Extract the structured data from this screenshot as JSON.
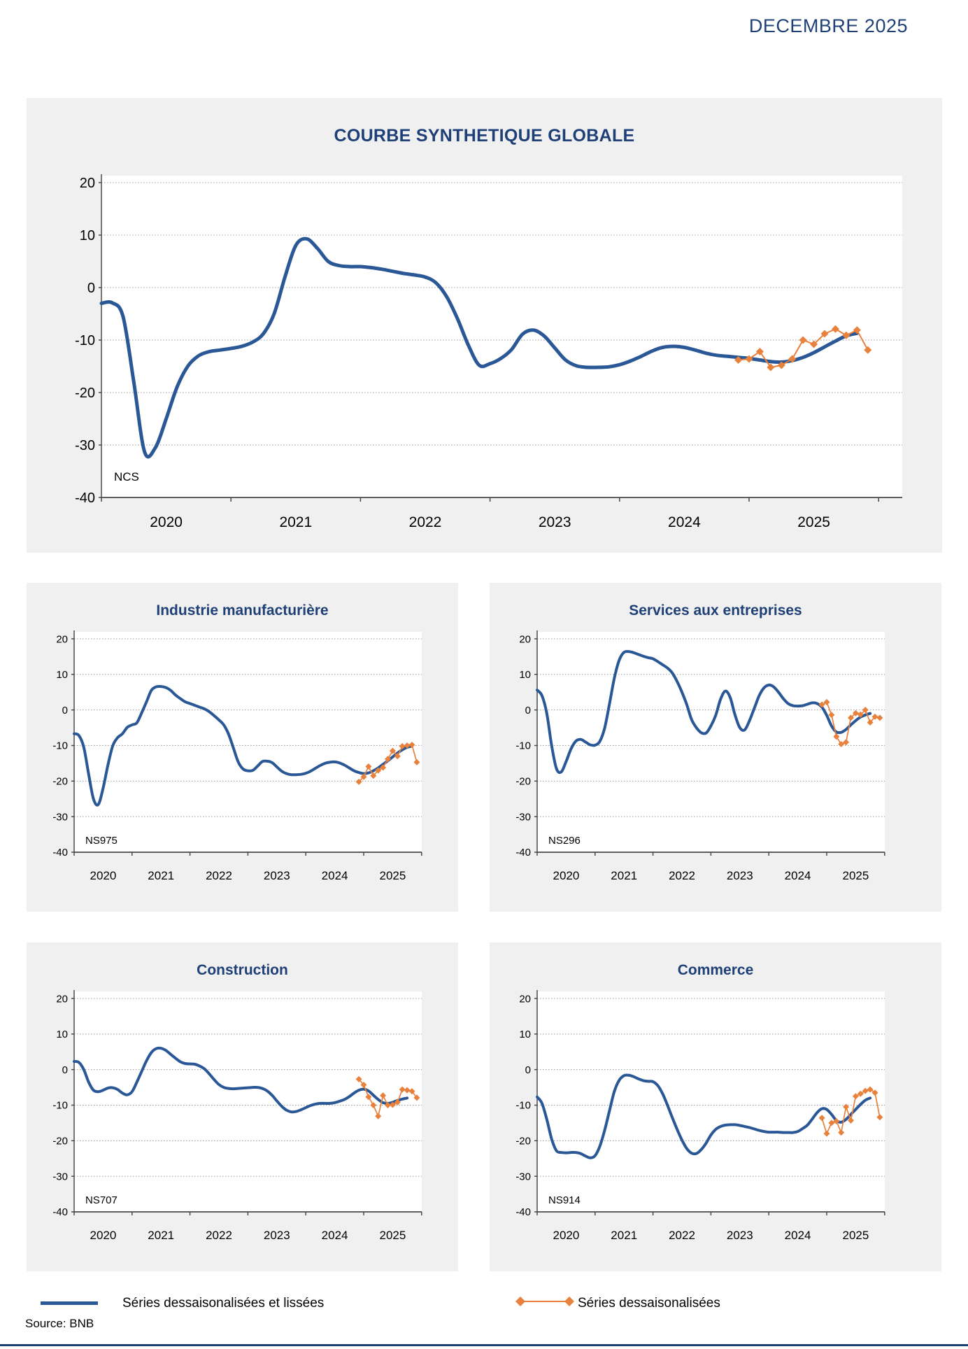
{
  "page": {
    "header": "DECEMBRE 2025",
    "source": "Source: BNB"
  },
  "legend": {
    "smoothed": "Séries dessaisonalisées et lissées",
    "raw": "Séries dessaisonalisées"
  },
  "colors": {
    "navy_text": "#1E4077",
    "blue_line": "#2A5795",
    "orange_line": "#E8813C",
    "panel_bg": "#F0F0F1",
    "plot_bg": "#FFFFFF",
    "grid": "#9B9B9B",
    "axis": "#4A4A4A",
    "tick_text": "#000000"
  },
  "chart_data": [
    {
      "id": "global",
      "type": "line",
      "title": "COURBE SYNTHETIQUE GLOBALE",
      "code": "NCS",
      "ylim": [
        -40,
        20
      ],
      "y_ticks": [
        20,
        10,
        0,
        -10,
        -20,
        -30,
        -40
      ],
      "x_years": [
        "2020",
        "2021",
        "2022",
        "2023",
        "2024",
        "2025"
      ],
      "x_domain": [
        "2020-01",
        "2026-01"
      ],
      "grid": true,
      "legend_position": "bottom",
      "series": [
        {
          "name": "Séries dessaisonalisées et lissées",
          "style": "smoothed",
          "start": "2020-01",
          "values": [
            -3.0,
            -2.9,
            -5.5,
            -18.0,
            -31.3,
            -30.5,
            -25.0,
            -19.0,
            -15.0,
            -13.0,
            -12.2,
            -11.9,
            -11.6,
            -11.2,
            -10.4,
            -8.8,
            -5.0,
            2.0,
            8.0,
            9.3,
            7.5,
            5.0,
            4.2,
            4.0,
            4.0,
            3.8,
            3.5,
            3.1,
            2.7,
            2.4,
            2.0,
            0.9,
            -1.8,
            -6.0,
            -11.0,
            -14.8,
            -14.5,
            -13.5,
            -11.8,
            -8.9,
            -8.1,
            -9.2,
            -11.5,
            -13.8,
            -14.9,
            -15.2,
            -15.2,
            -15.1,
            -14.7,
            -14.0,
            -13.1,
            -12.1,
            -11.4,
            -11.2,
            -11.4,
            -11.9,
            -12.5,
            -12.9,
            -13.1,
            -13.3,
            -13.5,
            -13.8,
            -14.1,
            -14.2,
            -13.9,
            -13.3,
            -12.4,
            -11.3,
            -10.2,
            -9.2,
            -8.7
          ]
        },
        {
          "name": "Séries dessaisonalisées",
          "style": "raw",
          "start": "2024-12",
          "values": [
            -13.8,
            -13.6,
            -12.2,
            -15.2,
            -14.8,
            -13.6,
            -10.0,
            -10.8,
            -8.8,
            -7.9,
            -9.1,
            -8.1,
            -11.9
          ]
        }
      ]
    },
    {
      "id": "industrie",
      "type": "line",
      "title": "Industrie manufacturière",
      "code": "NS975",
      "ylim": [
        -40,
        20
      ],
      "y_ticks": [
        20,
        10,
        0,
        -10,
        -20,
        -30,
        -40
      ],
      "x_years": [
        "2020",
        "2021",
        "2022",
        "2023",
        "2024",
        "2025"
      ],
      "x_domain": [
        "2020-01",
        "2026-01"
      ],
      "grid": true,
      "series": [
        {
          "name": "Séries dessaisonalisées et lissées",
          "style": "smoothed",
          "start": "2020-01",
          "values": [
            -6.7,
            -7.2,
            -10.5,
            -18.0,
            -25.0,
            -26.6,
            -22.0,
            -15.5,
            -10.1,
            -7.8,
            -6.7,
            -4.9,
            -4.2,
            -3.6,
            -0.8,
            2.3,
            5.5,
            6.5,
            6.6,
            6.3,
            5.5,
            4.2,
            3.2,
            2.3,
            1.8,
            1.3,
            0.8,
            0.3,
            -0.5,
            -1.6,
            -2.8,
            -4.2,
            -6.8,
            -10.7,
            -14.6,
            -16.6,
            -17.1,
            -17.0,
            -15.8,
            -14.5,
            -14.4,
            -14.8,
            -16.0,
            -17.2,
            -17.9,
            -18.2,
            -18.2,
            -18.1,
            -17.8,
            -17.2,
            -16.4,
            -15.6,
            -15.0,
            -14.7,
            -14.6,
            -14.9,
            -15.5,
            -16.3,
            -17.1,
            -17.6,
            -17.9,
            -17.7,
            -17.1,
            -16.3,
            -15.3,
            -14.3,
            -13.2,
            -12.1,
            -11.2,
            -10.5,
            -10.2
          ]
        },
        {
          "name": "Séries dessaisonalisées",
          "style": "raw",
          "start": "2024-12",
          "values": [
            -20.2,
            -18.8,
            -15.9,
            -18.5,
            -17.0,
            -16.2,
            -13.8,
            -11.5,
            -13.0,
            -10.2,
            -10.0,
            -9.8,
            -14.7
          ]
        }
      ]
    },
    {
      "id": "services",
      "type": "line",
      "title": "Services aux entreprises",
      "code": "NS296",
      "ylim": [
        -40,
        20
      ],
      "y_ticks": [
        20,
        10,
        0,
        -10,
        -20,
        -30,
        -40
      ],
      "x_years": [
        "2020",
        "2021",
        "2022",
        "2023",
        "2024",
        "2025"
      ],
      "x_domain": [
        "2020-01",
        "2026-01"
      ],
      "grid": true,
      "series": [
        {
          "name": "Séries dessaisonalisées et lissées",
          "style": "smoothed",
          "start": "2020-01",
          "values": [
            5.6,
            4.0,
            -1.0,
            -10.0,
            -16.5,
            -17.4,
            -14.5,
            -11.0,
            -8.8,
            -8.3,
            -9.0,
            -9.8,
            -9.9,
            -8.8,
            -5.0,
            1.8,
            9.0,
            14.0,
            16.2,
            16.4,
            16.1,
            15.6,
            15.1,
            14.7,
            14.4,
            13.6,
            12.7,
            11.8,
            10.4,
            8.0,
            5.0,
            1.5,
            -2.7,
            -5.0,
            -6.4,
            -6.5,
            -4.5,
            -1.5,
            3.0,
            5.3,
            3.5,
            -1.4,
            -5.0,
            -5.6,
            -3.0,
            0.5,
            4.0,
            6.2,
            7.0,
            6.5,
            5.0,
            3.2,
            1.8,
            1.2,
            1.1,
            1.2,
            1.6,
            2.0,
            1.8,
            0.8,
            -1.5,
            -4.5,
            -6.2,
            -6.3,
            -5.5,
            -4.2,
            -3.0,
            -2.0,
            -1.4,
            -1.0
          ]
        },
        {
          "name": "Séries dessaisonalisées",
          "style": "raw",
          "start": "2024-12",
          "values": [
            1.5,
            2.2,
            -1.4,
            -7.5,
            -9.6,
            -9.1,
            -2.2,
            -0.9,
            -1.3,
            0.0,
            -3.5,
            -1.9,
            -2.2
          ]
        }
      ]
    },
    {
      "id": "construction",
      "type": "line",
      "title": "Construction",
      "code": "NS707",
      "ylim": [
        -40,
        20
      ],
      "y_ticks": [
        20,
        10,
        0,
        -10,
        -20,
        -30,
        -40
      ],
      "x_years": [
        "2020",
        "2021",
        "2022",
        "2023",
        "2024",
        "2025"
      ],
      "x_domain": [
        "2020-01",
        "2026-01"
      ],
      "grid": true,
      "series": [
        {
          "name": "Séries dessaisonalisées et lissées",
          "style": "smoothed",
          "start": "2020-01",
          "values": [
            2.3,
            2.0,
            0.0,
            -3.5,
            -5.8,
            -6.2,
            -5.8,
            -5.2,
            -5.1,
            -5.6,
            -6.6,
            -7.1,
            -6.2,
            -3.5,
            -0.5,
            2.5,
            4.8,
            5.9,
            6.0,
            5.4,
            4.3,
            3.2,
            2.2,
            1.7,
            1.6,
            1.5,
            1.0,
            0.2,
            -1.2,
            -2.8,
            -4.2,
            -5.0,
            -5.3,
            -5.4,
            -5.3,
            -5.2,
            -5.1,
            -5.0,
            -5.0,
            -5.3,
            -6.0,
            -7.2,
            -8.8,
            -10.3,
            -11.4,
            -11.9,
            -11.8,
            -11.3,
            -10.7,
            -10.1,
            -9.7,
            -9.5,
            -9.5,
            -9.5,
            -9.3,
            -8.9,
            -8.4,
            -7.6,
            -6.6,
            -5.8,
            -5.5,
            -6.0,
            -7.2,
            -8.4,
            -9.3,
            -9.5,
            -9.2,
            -8.7,
            -8.3,
            -8.0
          ]
        },
        {
          "name": "Séries dessaisonalisées",
          "style": "raw",
          "start": "2024-12",
          "values": [
            -2.7,
            -4.3,
            -7.7,
            -10.0,
            -13.1,
            -7.3,
            -10.0,
            -9.9,
            -9.2,
            -5.6,
            -5.8,
            -6.1,
            -7.9
          ]
        }
      ]
    },
    {
      "id": "commerce",
      "type": "line",
      "title": "Commerce",
      "code": "NS914",
      "ylim": [
        -40,
        20
      ],
      "y_ticks": [
        20,
        10,
        0,
        -10,
        -20,
        -30,
        -40
      ],
      "x_years": [
        "2020",
        "2021",
        "2022",
        "2023",
        "2024",
        "2025"
      ],
      "x_domain": [
        "2020-01",
        "2026-01"
      ],
      "grid": true,
      "series": [
        {
          "name": "Séries dessaisonalisées et lissées",
          "style": "smoothed",
          "start": "2020-01",
          "values": [
            -7.7,
            -9.5,
            -14.0,
            -19.5,
            -22.8,
            -23.3,
            -23.4,
            -23.3,
            -23.3,
            -23.6,
            -24.3,
            -24.8,
            -24.2,
            -21.5,
            -17.0,
            -11.5,
            -6.1,
            -3.0,
            -1.7,
            -1.6,
            -2.0,
            -2.6,
            -3.1,
            -3.3,
            -3.4,
            -4.5,
            -6.8,
            -10.0,
            -13.5,
            -16.8,
            -19.8,
            -22.2,
            -23.5,
            -23.6,
            -22.5,
            -20.7,
            -18.4,
            -16.8,
            -16.0,
            -15.6,
            -15.5,
            -15.5,
            -15.7,
            -16.0,
            -16.3,
            -16.7,
            -17.1,
            -17.4,
            -17.6,
            -17.6,
            -17.6,
            -17.7,
            -17.7,
            -17.7,
            -17.4,
            -16.6,
            -15.6,
            -13.9,
            -12.1,
            -11.0,
            -11.2,
            -12.6,
            -14.3,
            -14.8,
            -14.0,
            -12.6,
            -11.2,
            -9.8,
            -8.6,
            -8.0
          ]
        },
        {
          "name": "Séries dessaisonalisées",
          "style": "raw",
          "start": "2024-12",
          "values": [
            -13.6,
            -18.0,
            -15.0,
            -14.5,
            -17.7,
            -10.5,
            -14.3,
            -7.5,
            -6.8,
            -6.0,
            -5.6,
            -6.5,
            -13.4
          ]
        }
      ]
    }
  ]
}
